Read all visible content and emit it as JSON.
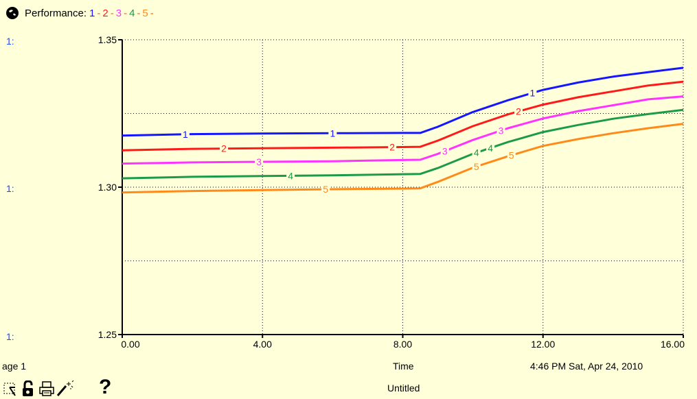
{
  "header": {
    "label": "Performance:",
    "series_refs": [
      "1",
      "2",
      "3",
      "4",
      "5"
    ]
  },
  "axis_prefixes": [
    "1:",
    "1:",
    "1:"
  ],
  "footer": {
    "page_label": "age 1",
    "time_label": "Time",
    "timestamp": "4:46 PM   Sat, Apr 24, 2010",
    "doc_title": "Untitled"
  },
  "toolbar": {
    "help_label": "?"
  },
  "colors": {
    "background": "#ffffd9",
    "series": [
      "#1515ff",
      "#ff1a1a",
      "#ff33ff",
      "#1a9a4a",
      "#ff8a1a"
    ]
  },
  "chart_data": {
    "type": "line",
    "title": "Performance:",
    "xlabel": "Time",
    "ylabel": "",
    "xlim": [
      0,
      16
    ],
    "ylim": [
      1.25,
      1.35
    ],
    "x_ticks": [
      "0.00",
      "4.00",
      "8.00",
      "12.00",
      "16.00"
    ],
    "y_ticks": [
      "1.25",
      "1.30",
      "1.35"
    ],
    "grid": "dotted",
    "series": [
      {
        "name": "1",
        "x": [
          0,
          2,
          4,
          6,
          8,
          8.5,
          9,
          10,
          11,
          12,
          13,
          14,
          15,
          16
        ],
        "values": [
          1.3175,
          1.318,
          1.3182,
          1.3183,
          1.3184,
          1.3184,
          1.3205,
          1.3255,
          1.3295,
          1.333,
          1.3355,
          1.3375,
          1.339,
          1.3405
        ]
      },
      {
        "name": "2",
        "x": [
          0,
          2,
          4,
          6,
          8,
          8.5,
          9,
          10,
          11,
          12,
          13,
          14,
          15,
          16
        ],
        "values": [
          1.3125,
          1.313,
          1.3132,
          1.3134,
          1.3136,
          1.3137,
          1.3158,
          1.3207,
          1.3247,
          1.328,
          1.3305,
          1.3325,
          1.3345,
          1.3358
        ]
      },
      {
        "name": "3",
        "x": [
          0,
          2,
          4,
          6,
          8,
          8.5,
          9,
          10,
          11,
          12,
          13,
          14,
          15,
          16
        ],
        "values": [
          1.308,
          1.3084,
          1.3086,
          1.3088,
          1.3092,
          1.3093,
          1.3113,
          1.316,
          1.32,
          1.3233,
          1.3258,
          1.3278,
          1.3298,
          1.3308
        ]
      },
      {
        "name": "4",
        "x": [
          0,
          2,
          4,
          6,
          8,
          8.5,
          9,
          10,
          11,
          12,
          13,
          14,
          15,
          16
        ],
        "values": [
          1.303,
          1.3035,
          1.3038,
          1.304,
          1.3044,
          1.3045,
          1.3065,
          1.3113,
          1.3153,
          1.3187,
          1.3211,
          1.3232,
          1.3248,
          1.3262
        ]
      },
      {
        "name": "5",
        "x": [
          0,
          2,
          4,
          6,
          8,
          8.5,
          9,
          10,
          11,
          12,
          13,
          14,
          15,
          16
        ],
        "values": [
          1.2982,
          1.2987,
          1.299,
          1.2993,
          1.2995,
          1.2996,
          1.3018,
          1.3066,
          1.3105,
          1.314,
          1.3163,
          1.3183,
          1.32,
          1.3215
        ]
      }
    ],
    "series_label_x": [
      [
        1.8,
        6.0,
        11.7
      ],
      [
        2.9,
        7.7,
        11.3
      ],
      [
        3.9,
        9.2,
        10.8
      ],
      [
        4.8,
        10.1,
        10.5
      ],
      [
        5.8,
        11.1,
        10.1
      ]
    ]
  }
}
